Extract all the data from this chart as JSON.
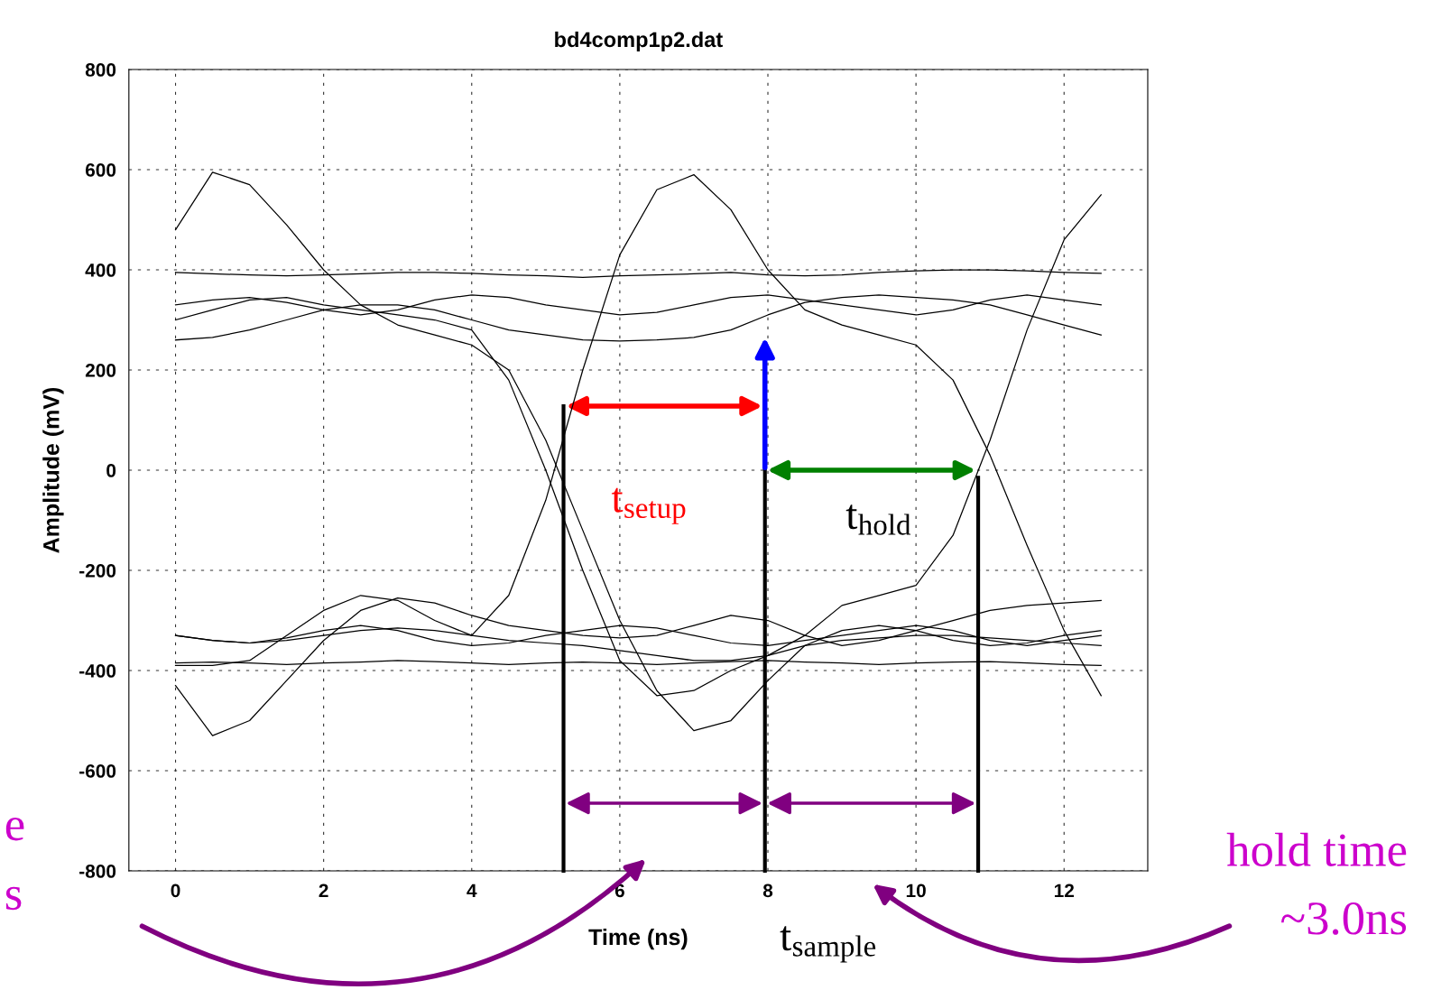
{
  "chart_data": {
    "type": "line",
    "title": "bd4comp1p2.dat",
    "xlabel": "Time (ns)",
    "ylabel": "Amplitude (mV)",
    "x": [
      0,
      0.5,
      1,
      1.5,
      2,
      2.5,
      3,
      3.5,
      4,
      4.5,
      5,
      5.5,
      6,
      6.5,
      7,
      7.5,
      8,
      8.5,
      9,
      9.5,
      10,
      10.5,
      11,
      11.5,
      12,
      12.5
    ],
    "series": [
      {
        "color": "#000000",
        "values": [
          480,
          595,
          570,
          490,
          400,
          330,
          290,
          270,
          250,
          200,
          60,
          -120,
          -300,
          -440,
          -520,
          -500,
          -420,
          -350,
          -320,
          -310,
          -320,
          -340,
          -350,
          -345,
          -330,
          -320
        ]
      },
      {
        "color": "#000000",
        "values": [
          -390,
          -390,
          -380,
          -330,
          -280,
          -250,
          -260,
          -300,
          -330,
          -250,
          -60,
          200,
          430,
          560,
          590,
          520,
          400,
          320,
          290,
          270,
          250,
          180,
          30,
          -150,
          -320,
          -450
        ]
      },
      {
        "color": "#000000",
        "values": [
          395,
          392,
          390,
          388,
          390,
          392,
          395,
          395,
          393,
          390,
          388,
          385,
          388,
          390,
          392,
          395,
          390,
          388,
          390,
          395,
          398,
          400,
          400,
          398,
          395,
          393
        ]
      },
      {
        "color": "#000000",
        "values": [
          -385,
          -383,
          -385,
          -388,
          -385,
          -383,
          -380,
          -382,
          -385,
          -388,
          -385,
          -383,
          -385,
          -388,
          -385,
          -382,
          -380,
          -383,
          -385,
          -388,
          -385,
          -383,
          -382,
          -385,
          -388,
          -390
        ]
      },
      {
        "color": "#000000",
        "values": [
          330,
          340,
          345,
          335,
          320,
          310,
          320,
          340,
          350,
          345,
          330,
          320,
          310,
          315,
          330,
          345,
          350,
          340,
          330,
          320,
          310,
          320,
          340,
          350,
          340,
          330
        ]
      },
      {
        "color": "#000000",
        "values": [
          -330,
          -340,
          -345,
          -335,
          -320,
          -310,
          -320,
          -340,
          -350,
          -345,
          -330,
          -320,
          -310,
          -315,
          -330,
          -345,
          -350,
          -340,
          -330,
          -320,
          -310,
          -320,
          -340,
          -350,
          -340,
          -330
        ]
      },
      {
        "color": "#000000",
        "values": [
          -430,
          -530,
          -500,
          -420,
          -340,
          -280,
          -255,
          -265,
          -290,
          -310,
          -320,
          -330,
          -335,
          -330,
          -310,
          -290,
          -300,
          -330,
          -350,
          -340,
          -320,
          -300,
          -280,
          -270,
          -265,
          -260
        ]
      },
      {
        "color": "#000000",
        "values": [
          -330,
          -340,
          -345,
          -340,
          -330,
          -320,
          -315,
          -320,
          -330,
          -340,
          -345,
          -350,
          -360,
          -370,
          -380,
          -380,
          -370,
          -330,
          -270,
          -250,
          -230,
          -130,
          60,
          280,
          460,
          550
        ]
      },
      {
        "color": "#000000",
        "values": [
          300,
          320,
          340,
          345,
          330,
          320,
          310,
          300,
          280,
          180,
          0,
          -200,
          -380,
          -450,
          -440,
          -400,
          -370,
          -350,
          -340,
          -335,
          -330,
          -330,
          -335,
          -340,
          -345,
          -350
        ]
      },
      {
        "color": "#000000",
        "values": [
          260,
          265,
          280,
          300,
          320,
          330,
          330,
          320,
          300,
          280,
          270,
          260,
          258,
          260,
          265,
          280,
          310,
          335,
          345,
          350,
          345,
          340,
          330,
          310,
          290,
          270
        ]
      }
    ],
    "xlim": [
      -0.63,
      13.13
    ],
    "ylim": [
      -800,
      800
    ],
    "xticks": [
      0,
      2,
      4,
      6,
      8,
      10,
      12
    ],
    "yticks": [
      -800,
      -600,
      -400,
      -200,
      0,
      200,
      400,
      600,
      800
    ],
    "grid": true,
    "legend": false,
    "marker": "none",
    "line_style": "solid",
    "ref_lines": [
      {
        "axis": "x",
        "value": 5.24,
        "color": "#000000"
      },
      {
        "axis": "x",
        "value": 7.96,
        "label": "t$_{sample}$",
        "color": "#000000"
      },
      {
        "axis": "x",
        "value": 10.84,
        "color": "#000000"
      }
    ],
    "annotations": [
      "t$_{setup}$",
      "t$_{hold}$",
      "e",
      "s",
      "hold time",
      "~3.0ns"
    ]
  }
}
